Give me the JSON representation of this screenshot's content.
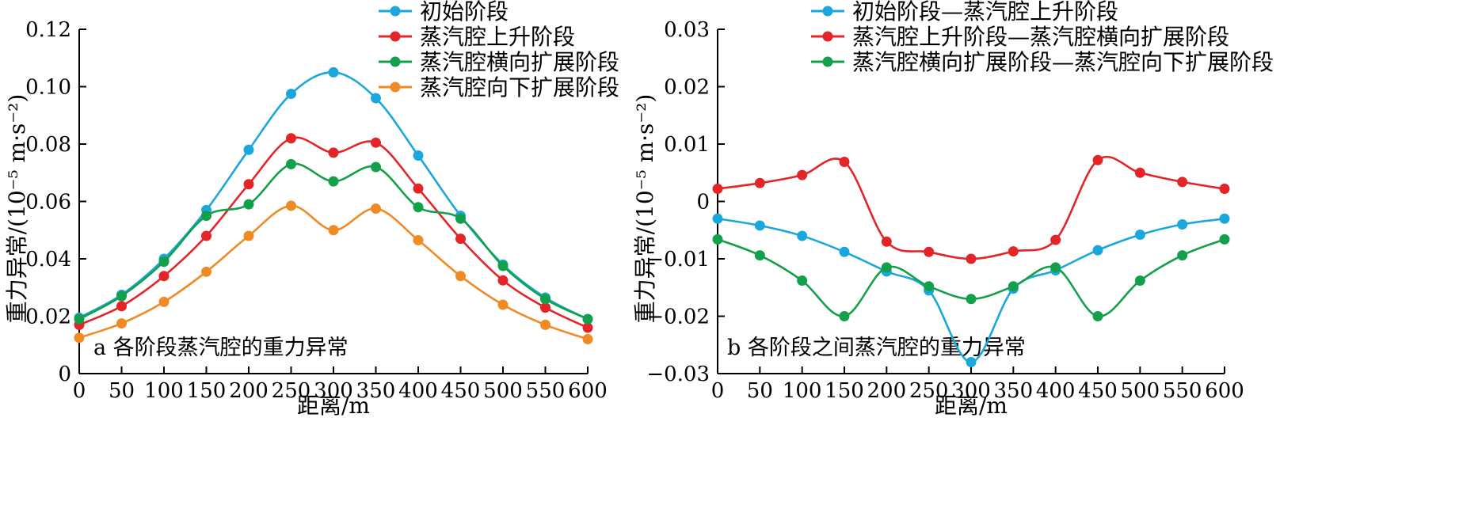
{
  "chart_data": [
    {
      "type": "line",
      "title": "",
      "annotation": "a 各阶段蒸汽腔的重力异常",
      "xlabel": "距离/m",
      "ylabel": "重力异常/(10⁻⁵ m·s⁻²)",
      "xlim": [
        0,
        600
      ],
      "ylim": [
        0,
        0.12
      ],
      "xticks": [
        0,
        50,
        100,
        150,
        200,
        250,
        300,
        350,
        400,
        450,
        500,
        550,
        600
      ],
      "xtick_labels": [
        "0",
        "50",
        "100",
        "150",
        "200",
        "250",
        "300",
        "350",
        "400",
        "450",
        "500",
        "550",
        "600"
      ],
      "yticks": [
        0,
        0.02,
        0.04,
        0.06,
        0.08,
        0.1,
        0.12
      ],
      "ytick_labels": [
        "0",
        "0.02",
        "0.04",
        "0.06",
        "0.08",
        "0.10",
        "0.12"
      ],
      "grid": false,
      "legend_position": "top-right",
      "x": [
        0,
        50,
        100,
        150,
        200,
        250,
        300,
        350,
        400,
        450,
        500,
        550,
        600
      ],
      "series": [
        {
          "name": "初始阶段",
          "color": "#1aa7dc",
          "values": [
            0.0195,
            0.0275,
            0.04,
            0.057,
            0.078,
            0.0975,
            0.105,
            0.096,
            0.076,
            0.055,
            0.038,
            0.0265,
            0.019
          ]
        },
        {
          "name": "蒸汽腔上升阶段",
          "color": "#e32428",
          "values": [
            0.017,
            0.0235,
            0.034,
            0.048,
            0.066,
            0.082,
            0.077,
            0.0805,
            0.0645,
            0.047,
            0.0325,
            0.023,
            0.016
          ]
        },
        {
          "name": "蒸汽腔横向扩展阶段",
          "color": "#13a04a",
          "values": [
            0.019,
            0.027,
            0.039,
            0.055,
            0.059,
            0.073,
            0.067,
            0.072,
            0.058,
            0.054,
            0.0375,
            0.026,
            0.019
          ]
        },
        {
          "name": "蒸汽腔向下扩展阶段",
          "color": "#f08a24",
          "values": [
            0.0125,
            0.0175,
            0.025,
            0.0355,
            0.048,
            0.0585,
            0.05,
            0.0575,
            0.0465,
            0.034,
            0.024,
            0.017,
            0.012
          ]
        }
      ]
    },
    {
      "type": "line",
      "title": "",
      "annotation": "b 各阶段之间蒸汽腔的重力异常",
      "xlabel": "距离/m",
      "ylabel": "重力异常/(10⁻⁵ m·s⁻²)",
      "xlim": [
        0,
        600
      ],
      "ylim": [
        -0.03,
        0.03
      ],
      "xticks": [
        0,
        50,
        100,
        150,
        200,
        250,
        300,
        350,
        400,
        450,
        500,
        550,
        600
      ],
      "xtick_labels": [
        "0",
        "50",
        "100",
        "150",
        "200",
        "250",
        "300",
        "350",
        "400",
        "450",
        "500",
        "550",
        "600"
      ],
      "yticks": [
        -0.03,
        -0.02,
        -0.01,
        0,
        0.01,
        0.02,
        0.03
      ],
      "ytick_labels": [
        "−0.03",
        "−0.02",
        "−0.01",
        "0",
        "0.01",
        "0.02",
        "0.03"
      ],
      "grid": false,
      "legend_position": "top-right",
      "x": [
        0,
        50,
        100,
        150,
        200,
        250,
        300,
        350,
        400,
        450,
        500,
        550,
        600
      ],
      "series": [
        {
          "name": "初始阶段—蒸汽腔上升阶段",
          "color": "#1aa7dc",
          "values": [
            -0.003,
            -0.0042,
            -0.006,
            -0.0088,
            -0.0122,
            -0.0155,
            -0.028,
            -0.0152,
            -0.012,
            -0.0085,
            -0.0058,
            -0.004,
            -0.003
          ]
        },
        {
          "name": "蒸汽腔上升阶段—蒸汽腔横向扩展阶段",
          "color": "#e32428",
          "values": [
            0.0022,
            0.0032,
            0.0046,
            0.0069,
            -0.007,
            -0.0088,
            -0.01,
            -0.0087,
            -0.0067,
            0.0072,
            0.005,
            0.0034,
            0.0022
          ]
        },
        {
          "name": "蒸汽腔横向扩展阶段—蒸汽腔向下扩展阶段",
          "color": "#13a04a",
          "values": [
            -0.0066,
            -0.0094,
            -0.0138,
            -0.02,
            -0.0115,
            -0.0148,
            -0.017,
            -0.0148,
            -0.0115,
            -0.02,
            -0.0138,
            -0.0094,
            -0.0066
          ]
        }
      ]
    }
  ]
}
